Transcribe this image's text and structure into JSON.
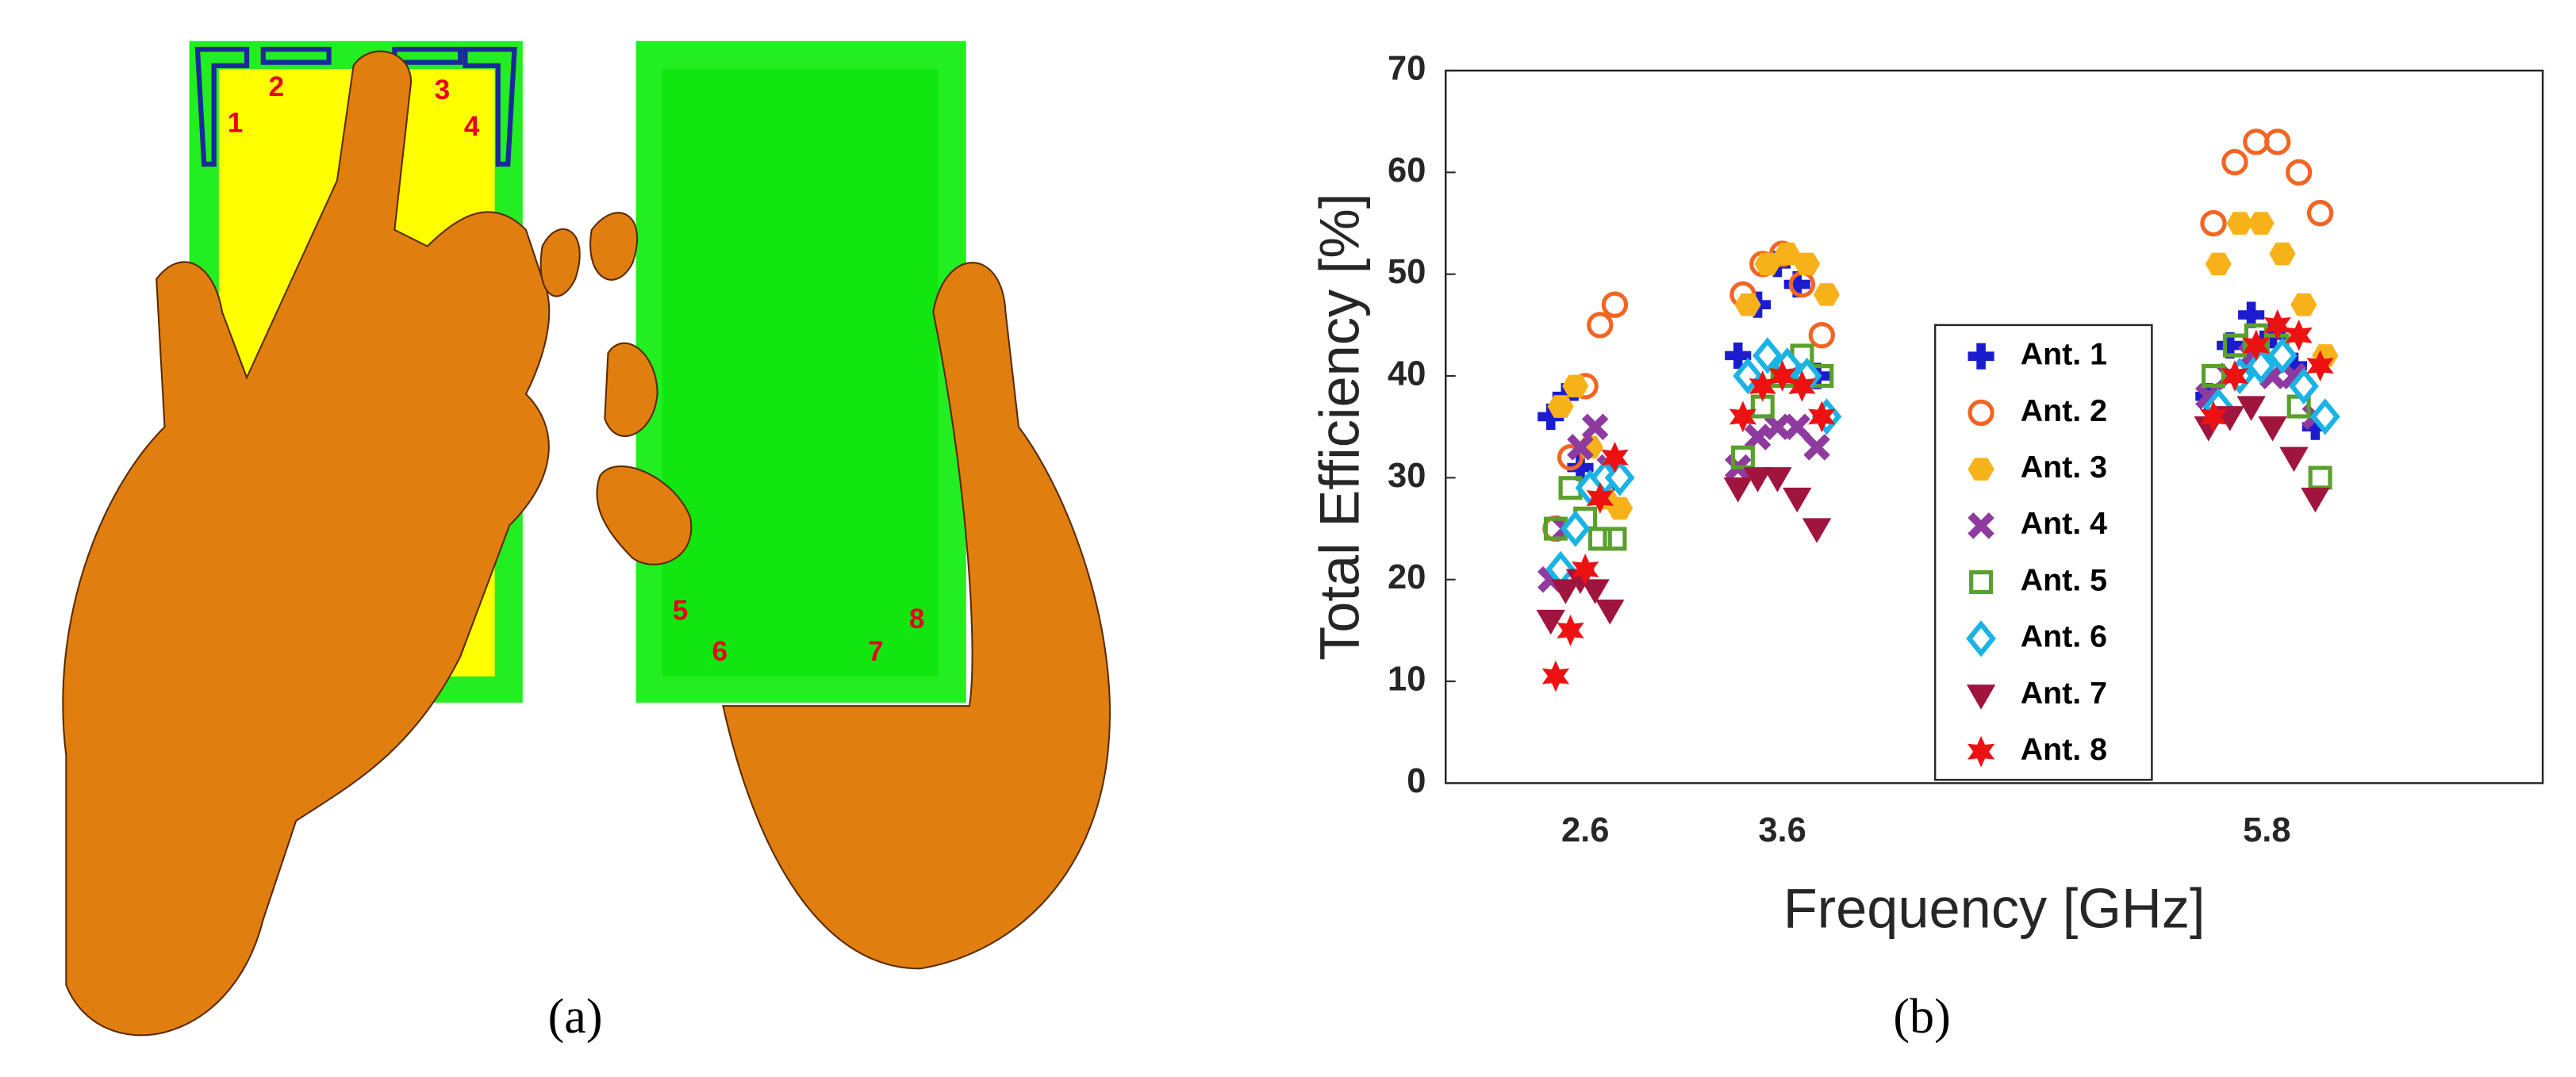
{
  "panel_a": {
    "caption": "(a)",
    "antenna_labels": [
      "1",
      "2",
      "3",
      "4",
      "5",
      "6",
      "7",
      "8"
    ]
  },
  "chart_data": {
    "type": "scatter",
    "caption": "(b)",
    "x_label": "Frequency [GHz]",
    "y_label": "Total Efficiency [%]",
    "categories": [
      "2.6",
      "3.6",
      "5.8"
    ],
    "ylim": [
      0,
      70
    ],
    "yticks": [
      0,
      10,
      20,
      30,
      40,
      50,
      60,
      70
    ],
    "series": [
      {
        "name": "Ant. 1",
        "color": "#1c1ccf",
        "marker": "plus",
        "values": [
          [
            36,
            38,
            31,
            29,
            30
          ],
          [
            42,
            47,
            51,
            49,
            40
          ],
          [
            38,
            43,
            46,
            44,
            41,
            35
          ]
        ]
      },
      {
        "name": "Ant. 2",
        "color": "#f26522",
        "marker": "circle",
        "values": [
          [
            25,
            32,
            39,
            45,
            47
          ],
          [
            48,
            51,
            52,
            49,
            44
          ],
          [
            55,
            61,
            63,
            63,
            60,
            56
          ]
        ]
      },
      {
        "name": "Ant. 3",
        "color": "#f7b21a",
        "marker": "hexagon",
        "values": [
          [
            37,
            39,
            33,
            28,
            27
          ],
          [
            47,
            51,
            52,
            51,
            48
          ],
          [
            51,
            55,
            55,
            52,
            47,
            42
          ]
        ]
      },
      {
        "name": "Ant. 4",
        "color": "#8e3a9e",
        "marker": "x",
        "values": [
          [
            20,
            25,
            33,
            35,
            31
          ],
          [
            31,
            34,
            35,
            35,
            33
          ],
          [
            38,
            40,
            42,
            40,
            40,
            36
          ]
        ]
      },
      {
        "name": "Ant. 5",
        "color": "#5aa02c",
        "marker": "square",
        "values": [
          [
            25,
            29,
            26,
            24,
            24
          ],
          [
            32,
            37,
            40,
            42,
            40
          ],
          [
            40,
            43,
            44,
            43,
            37,
            30
          ]
        ]
      },
      {
        "name": "Ant. 6",
        "color": "#1ab3e6",
        "marker": "diamond",
        "values": [
          [
            21,
            25,
            29,
            30,
            30
          ],
          [
            40,
            42,
            41,
            40,
            36
          ],
          [
            37,
            40,
            41,
            42,
            39,
            36
          ]
        ]
      },
      {
        "name": "Ant. 7",
        "color": "#a0153e",
        "marker": "triangle",
        "values": [
          [
            16,
            19,
            20,
            19,
            17
          ],
          [
            29,
            30,
            30,
            28,
            25
          ],
          [
            35,
            36,
            37,
            35,
            32,
            28
          ]
        ]
      },
      {
        "name": "Ant. 8",
        "color": "#ee1111",
        "marker": "star",
        "values": [
          [
            10.5,
            15,
            21,
            28,
            32
          ],
          [
            36,
            39,
            40,
            39,
            36
          ],
          [
            36,
            40,
            43,
            45,
            44,
            41
          ]
        ]
      }
    ]
  }
}
